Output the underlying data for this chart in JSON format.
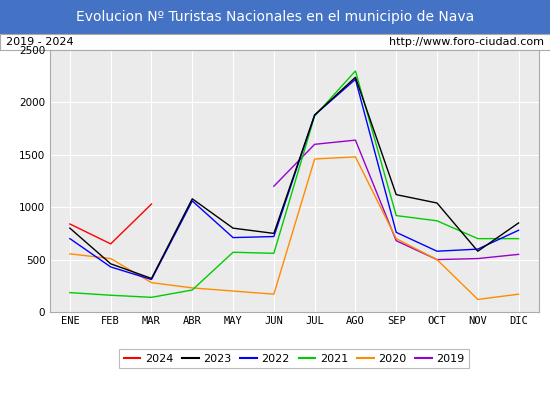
{
  "title": "Evolucion Nº Turistas Nacionales en el municipio de Nava",
  "subtitle_left": "2019 - 2024",
  "subtitle_right": "http://www.foro-ciudad.com",
  "x_labels": [
    "ENE",
    "FEB",
    "MAR",
    "ABR",
    "MAY",
    "JUN",
    "JUL",
    "AGO",
    "SEP",
    "OCT",
    "NOV",
    "DIC"
  ],
  "ylim": [
    0,
    2500
  ],
  "yticks": [
    0,
    500,
    1000,
    1500,
    2000,
    2500
  ],
  "series": {
    "2024": {
      "color": "#ff0000",
      "values": [
        840,
        650,
        1030,
        null,
        null,
        null,
        null,
        null,
        null,
        null,
        null,
        null
      ]
    },
    "2023": {
      "color": "#000000",
      "values": [
        800,
        460,
        320,
        1080,
        800,
        750,
        1880,
        2240,
        1120,
        1040,
        580,
        850
      ]
    },
    "2022": {
      "color": "#0000ff",
      "values": [
        700,
        430,
        310,
        1060,
        710,
        720,
        1880,
        2220,
        760,
        580,
        600,
        780
      ]
    },
    "2021": {
      "color": "#00cc00",
      "values": [
        185,
        160,
        140,
        210,
        570,
        560,
        1870,
        2300,
        920,
        870,
        700,
        700
      ]
    },
    "2020": {
      "color": "#ff8c00",
      "values": [
        555,
        510,
        280,
        230,
        200,
        170,
        1460,
        1480,
        700,
        500,
        120,
        170
      ]
    },
    "2019": {
      "color": "#9900cc",
      "values": [
        null,
        null,
        null,
        null,
        null,
        1200,
        1600,
        1640,
        680,
        500,
        510,
        550
      ]
    }
  },
  "title_bg_color": "#4472c4",
  "title_text_color": "#ffffff",
  "plot_bg_color": "#ebebeb",
  "grid_color": "#ffffff",
  "border_color": "#aaaaaa",
  "title_fontsize": 10,
  "subtitle_fontsize": 8,
  "tick_fontsize": 7.5,
  "legend_fontsize": 8
}
